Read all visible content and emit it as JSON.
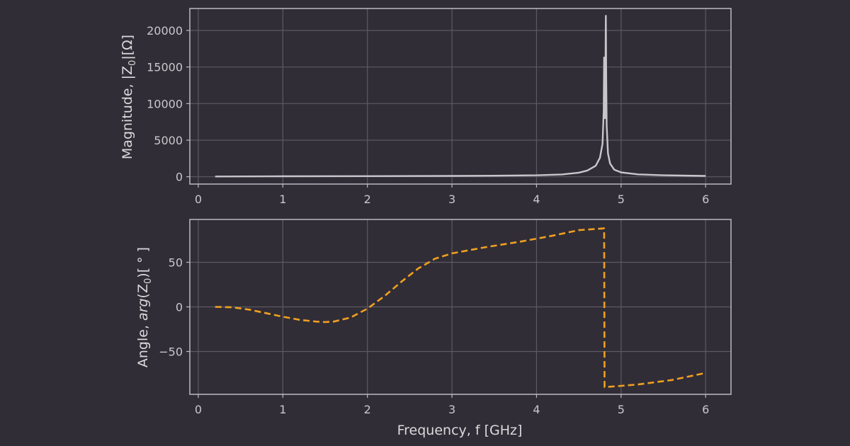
{
  "chart_data": [
    {
      "type": "line",
      "panel": "magnitude",
      "ylabel_main": "Magnitude, |Z",
      "ylabel_sub": "0",
      "ylabel_tail": "|[Ω]",
      "xlim": [
        -0.1,
        6.3
      ],
      "ylim": [
        -1000,
        23000
      ],
      "xticks": [
        0,
        1,
        2,
        3,
        4,
        5,
        6
      ],
      "yticks": [
        0,
        5000,
        10000,
        15000,
        20000
      ],
      "grid": true,
      "series": [
        {
          "color": "#c8c6cb",
          "style": "solid",
          "points": [
            [
              0.2,
              40
            ],
            [
              1,
              60
            ],
            [
              2,
              80
            ],
            [
              3,
              110
            ],
            [
              3.5,
              140
            ],
            [
              4,
              200
            ],
            [
              4.3,
              320
            ],
            [
              4.5,
              560
            ],
            [
              4.6,
              850
            ],
            [
              4.7,
              1500
            ],
            [
              4.75,
              2600
            ],
            [
              4.78,
              4500
            ],
            [
              4.795,
              9000
            ],
            [
              4.8,
              16300
            ],
            [
              4.805,
              12000
            ],
            [
              4.81,
              8000
            ],
            [
              4.815,
              14000
            ],
            [
              4.82,
              22000
            ],
            [
              4.825,
              13000
            ],
            [
              4.83,
              7000
            ],
            [
              4.845,
              3200
            ],
            [
              4.87,
              1800
            ],
            [
              4.92,
              950
            ],
            [
              5,
              600
            ],
            [
              5.2,
              330
            ],
            [
              5.5,
              200
            ],
            [
              6,
              110
            ]
          ]
        }
      ]
    },
    {
      "type": "line",
      "panel": "angle",
      "ylabel_main": "Angle, ",
      "ylabel_italic": "arg",
      "ylabel_open": "(Z",
      "ylabel_sub": "0",
      "ylabel_tail": ")[ ° ]",
      "xlabel": "Frequency, f [GHz]",
      "xlim": [
        -0.1,
        6.3
      ],
      "ylim": [
        -98,
        98
      ],
      "xticks": [
        0,
        1,
        2,
        3,
        4,
        5,
        6
      ],
      "yticks": [
        -50,
        0,
        50
      ],
      "ytick_labels": [
        "−50",
        "0",
        "50"
      ],
      "grid": true,
      "series": [
        {
          "color": "#f0a020",
          "style": "dashed",
          "points": [
            [
              0.2,
              0
            ],
            [
              0.4,
              -0.5
            ],
            [
              0.6,
              -3
            ],
            [
              0.8,
              -7
            ],
            [
              1,
              -11
            ],
            [
              1.2,
              -14.5
            ],
            [
              1.4,
              -16.5
            ],
            [
              1.5,
              -17
            ],
            [
              1.6,
              -16.5
            ],
            [
              1.8,
              -12
            ],
            [
              2,
              -2
            ],
            [
              2.2,
              12
            ],
            [
              2.4,
              28
            ],
            [
              2.6,
              43
            ],
            [
              2.8,
              54
            ],
            [
              3,
              60
            ],
            [
              3.4,
              67
            ],
            [
              3.8,
              73
            ],
            [
              4.2,
              80
            ],
            [
              4.5,
              86
            ],
            [
              4.8,
              88
            ],
            [
              4.805,
              -90
            ],
            [
              5.2,
              -87
            ],
            [
              5.6,
              -82
            ],
            [
              6,
              -74
            ]
          ]
        }
      ]
    }
  ]
}
